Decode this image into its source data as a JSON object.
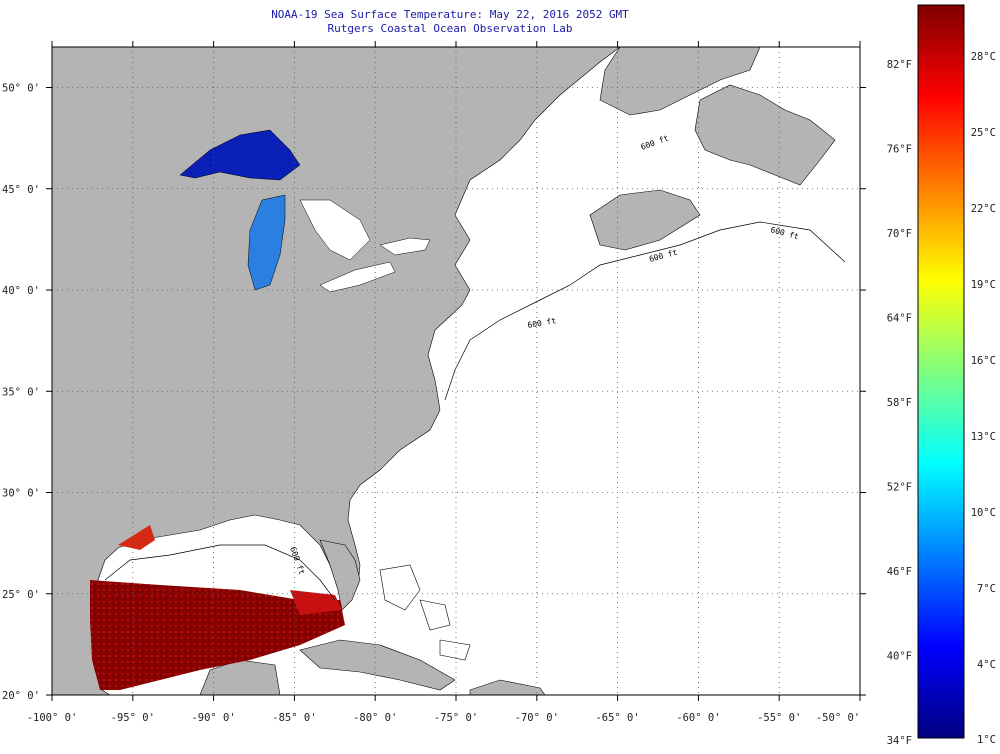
{
  "title": {
    "line1": "NOAA-19 Sea Surface Temperature:  May 22, 2016 2052 GMT",
    "line2": "Rutgers Coastal Ocean Observation Lab"
  },
  "map": {
    "lon_range": [
      -100,
      -50
    ],
    "lat_range": [
      20,
      52
    ],
    "lat_ticks": [
      {
        "lat": 50,
        "label": "50° 0'"
      },
      {
        "lat": 45,
        "label": "45° 0'"
      },
      {
        "lat": 40,
        "label": "40° 0'"
      },
      {
        "lat": 35,
        "label": "35° 0'"
      },
      {
        "lat": 30,
        "label": "30° 0'"
      },
      {
        "lat": 25,
        "label": "25° 0'"
      },
      {
        "lat": 20,
        "label": "20° 0'"
      }
    ],
    "lon_ticks": [
      {
        "lon": -100,
        "label": "-100° 0'"
      },
      {
        "lon": -95,
        "label": "-95° 0'"
      },
      {
        "lon": -90,
        "label": "-90° 0'"
      },
      {
        "lon": -85,
        "label": "-85° 0'"
      },
      {
        "lon": -80,
        "label": "-80° 0'"
      },
      {
        "lon": -75,
        "label": "-75° 0'"
      },
      {
        "lon": -70,
        "label": "-70° 0'"
      },
      {
        "lon": -65,
        "label": "-65° 0'"
      },
      {
        "lon": -60,
        "label": "-60° 0'"
      },
      {
        "lon": -55,
        "label": "-55° 0'"
      },
      {
        "lon": -50,
        "label": "-50° 0'"
      }
    ],
    "contour_label": "600 ft",
    "colors": {
      "land": "#b4b4b4",
      "ocean": "#ffffff",
      "grid": "#555555",
      "coast": "#000000",
      "gulf_sst_dark": "#8b0000",
      "gulf_sst_red": "#c81010",
      "lake_superior": "#0a1fb5",
      "lake_michigan": "#2a7fe0"
    }
  },
  "colorbar": {
    "fahrenheit_labels": [
      "82°F",
      "76°F",
      "70°F",
      "64°F",
      "58°F",
      "52°F",
      "46°F",
      "40°F",
      "34°F"
    ],
    "celsius_labels": [
      "28°C",
      "25°C",
      "22°C",
      "19°C",
      "16°C",
      "13°C",
      "10°C",
      "7°C",
      "4°C",
      "1°C"
    ],
    "stops": [
      "#00007f",
      "#0000ff",
      "#0080ff",
      "#00ffff",
      "#80ff80",
      "#ffff00",
      "#ff8000",
      "#ff0000",
      "#7f0000"
    ]
  }
}
